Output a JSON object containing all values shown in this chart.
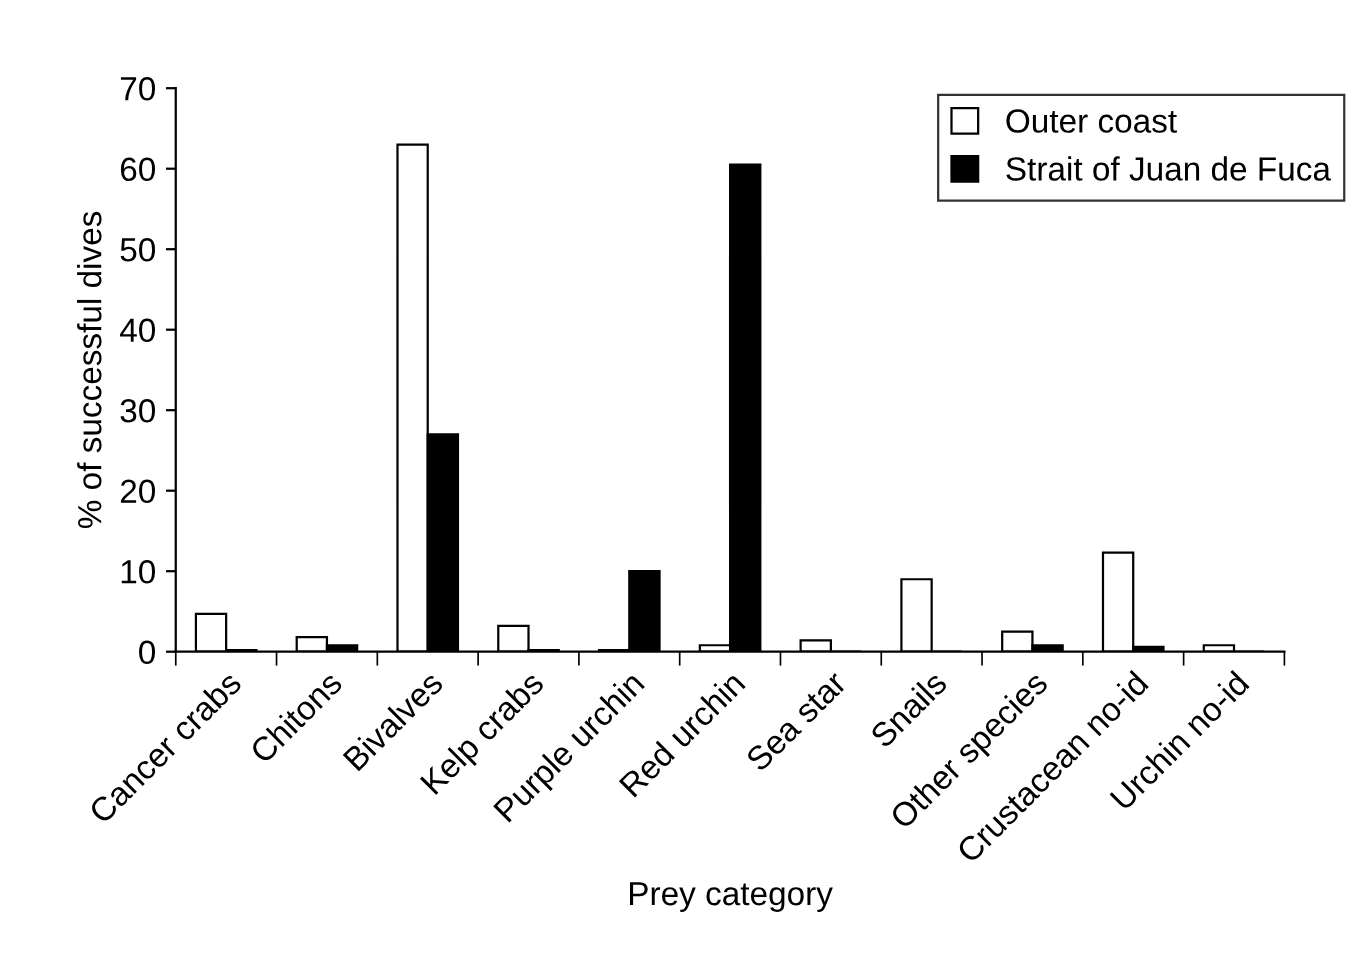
{
  "chart_data": {
    "type": "bar",
    "xlabel": "Prey category",
    "ylabel": "% of successful dives",
    "categories": [
      "Cancer crabs",
      "Chitons",
      "Bivalves",
      "Kelp crabs",
      "Purple urchin",
      "Red urchin",
      "Sea star",
      "Snails",
      "Other species",
      "Crustacean no-id",
      "Urchin no-id"
    ],
    "series": [
      {
        "name": "Outer coast",
        "color": "#ffffff",
        "values": [
          4.7,
          1.8,
          63,
          3.2,
          0.2,
          0.8,
          1.4,
          9,
          2.5,
          12.3,
          0.8
        ]
      },
      {
        "name": "Strait of Juan de Fuca",
        "color": "#000000",
        "values": [
          0.2,
          0.8,
          27,
          0.2,
          10,
          60.5,
          0,
          0,
          0.8,
          0.6,
          0
        ]
      }
    ],
    "ylim": [
      0,
      70
    ],
    "yticks": [
      0,
      10,
      20,
      30,
      40,
      50,
      60,
      70
    ],
    "grid": false,
    "legend": "top right"
  }
}
